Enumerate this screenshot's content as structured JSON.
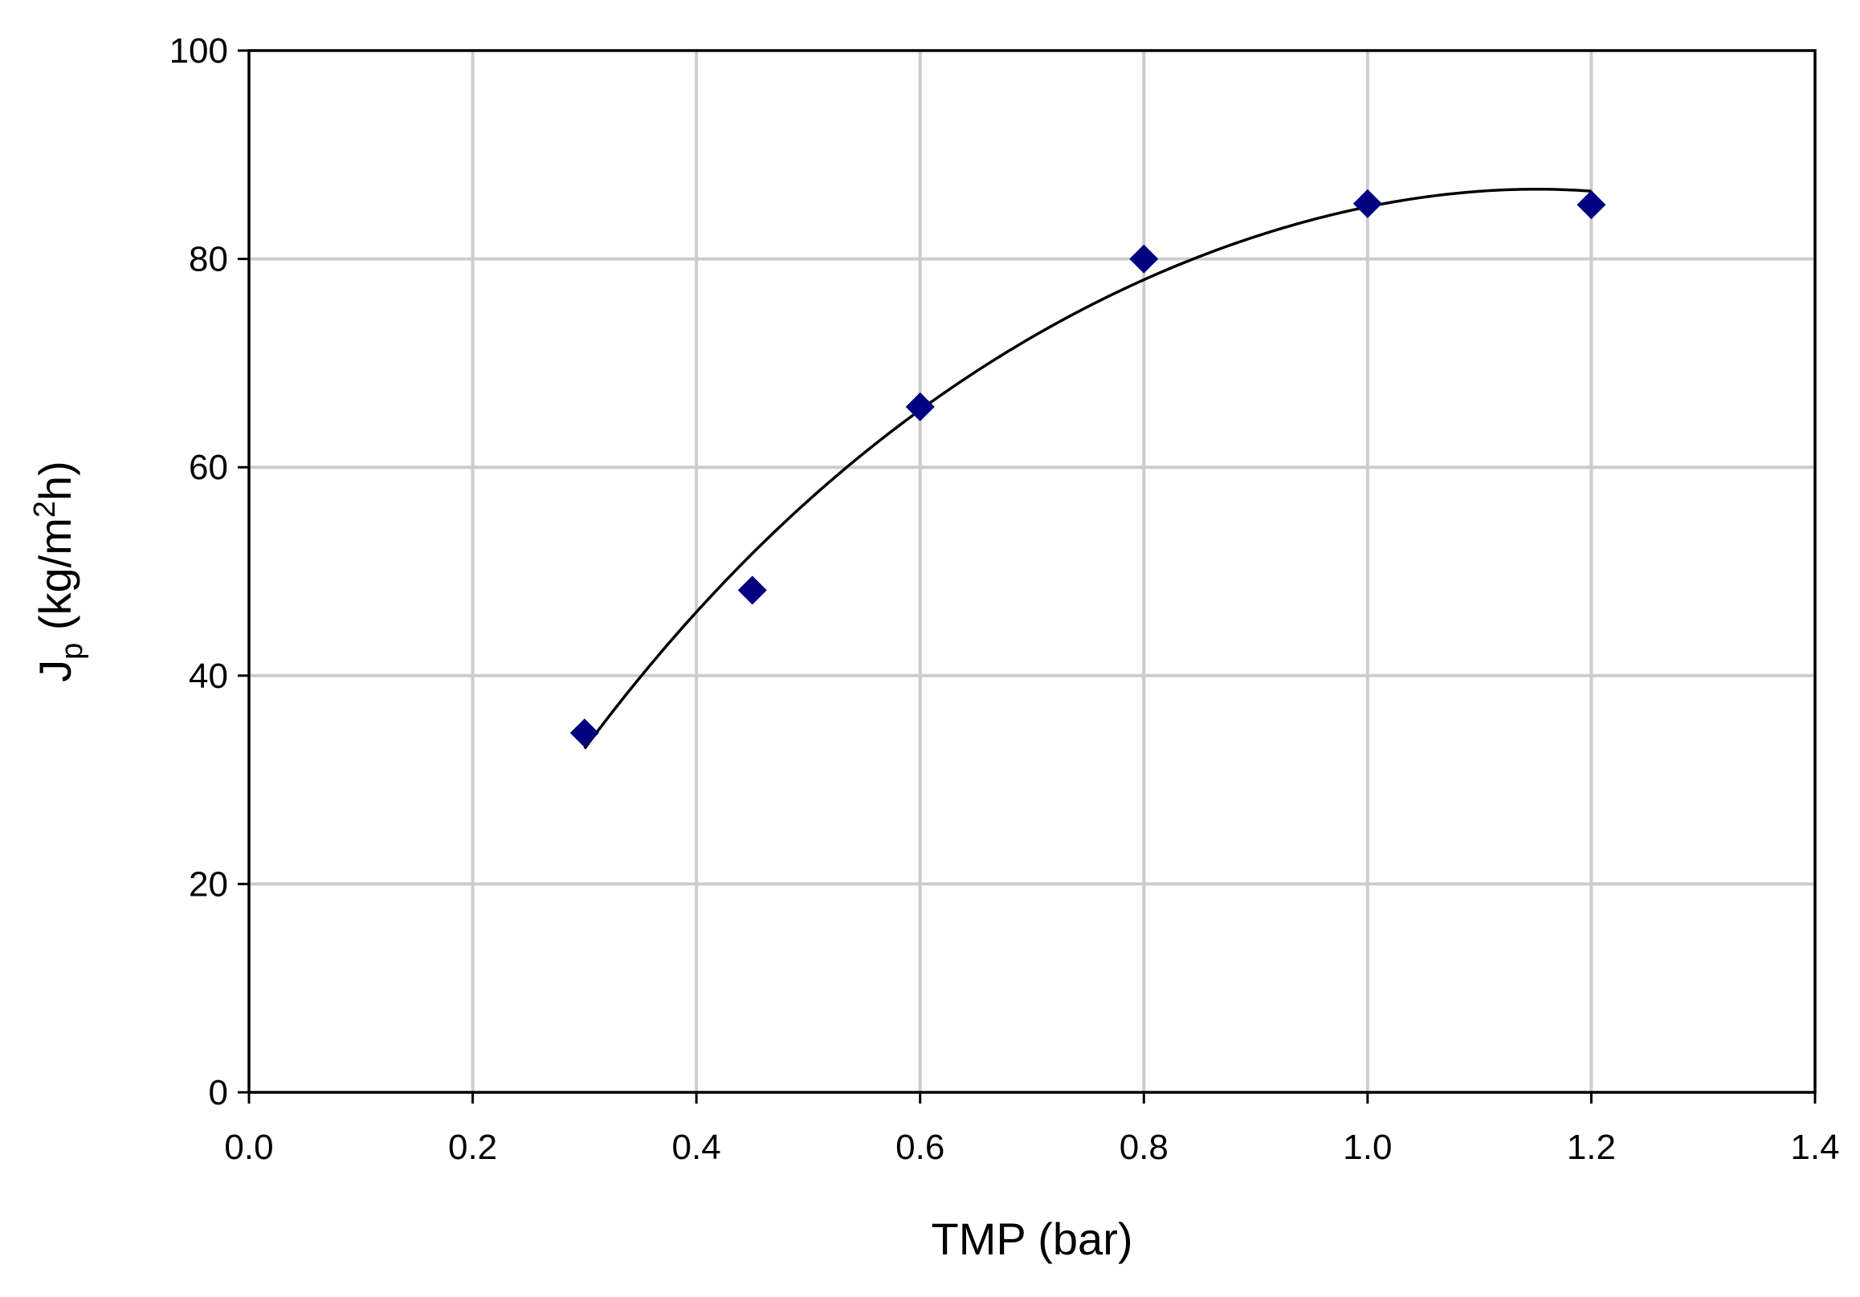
{
  "chart_data": {
    "type": "scatter",
    "title": "",
    "xlabel": "TMP (bar)",
    "ylabel": {
      "main": "J",
      "subscript": "p",
      "unit_prefix": " (kg/m",
      "superscript": "2",
      "unit_suffix": "h)"
    },
    "xlim": [
      0,
      1.4
    ],
    "ylim": [
      0,
      100
    ],
    "x_ticks": [
      0.0,
      0.2,
      0.4,
      0.6,
      0.8,
      1.0,
      1.2,
      1.4
    ],
    "x_tick_labels": [
      "0.0",
      "0.2",
      "0.4",
      "0.6",
      "0.8",
      "1.0",
      "1.2",
      "1.4"
    ],
    "y_ticks": [
      0,
      20,
      40,
      60,
      80,
      100
    ],
    "y_tick_labels": [
      "0",
      "20",
      "40",
      "60",
      "80",
      "100"
    ],
    "grid": true,
    "legend": "none",
    "series": [
      {
        "marker": "diamond",
        "color": "#000080",
        "points": [
          {
            "x": 0.3,
            "y": 34.5
          },
          {
            "x": 0.45,
            "y": 48.2
          },
          {
            "x": 0.6,
            "y": 65.8
          },
          {
            "x": 0.8,
            "y": 80.0
          },
          {
            "x": 1.0,
            "y": 85.3
          },
          {
            "x": 1.2,
            "y": 85.2
          }
        ]
      }
    ],
    "trendline": {
      "type": "polynomial",
      "color": "#000000",
      "x_range": [
        0.3,
        1.2
      ],
      "points": [
        {
          "x": 0.3,
          "y": 33.0
        },
        {
          "x": 0.6,
          "y": 65.5
        },
        {
          "x": 0.8,
          "y": 78.0
        },
        {
          "x": 1.0,
          "y": 85.0
        },
        {
          "x": 1.2,
          "y": 86.5
        }
      ]
    }
  }
}
